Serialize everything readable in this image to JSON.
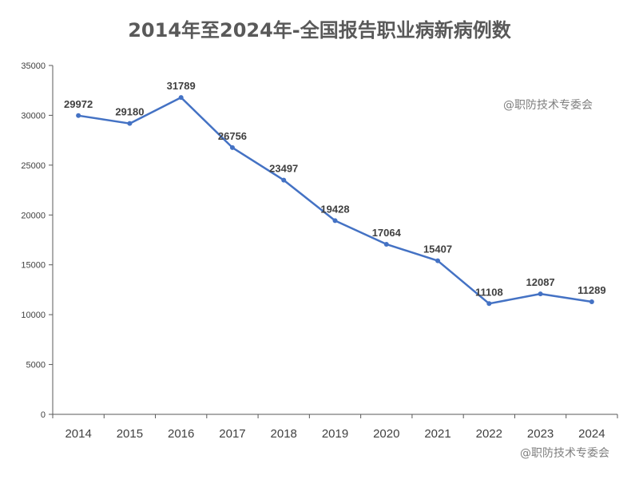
{
  "chart_data": {
    "type": "line",
    "title": "2014年至2024年-全国报告职业病新病例数",
    "xlabel": "",
    "ylabel": "",
    "categories": [
      "2014",
      "2015",
      "2016",
      "2017",
      "2018",
      "2019",
      "2020",
      "2021",
      "2022",
      "2023",
      "2024"
    ],
    "series": [
      {
        "values": [
          29972,
          29180,
          31789,
          26756,
          23497,
          19428,
          17064,
          15407,
          11108,
          12087,
          11289
        ]
      }
    ],
    "ylim": [
      0,
      35000
    ],
    "yticks": [
      0,
      5000,
      10000,
      15000,
      20000,
      25000,
      30000,
      35000
    ],
    "grid": false,
    "data_labels": true,
    "line_color": "#4472c4"
  },
  "watermarks": {
    "plot": "@职防技术专委会",
    "corner": "@职防技术专委会"
  }
}
